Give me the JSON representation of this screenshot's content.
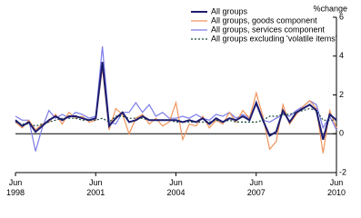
{
  "chart_data": {
    "type": "line",
    "y_label": "%change",
    "categories": [
      "Jun 1998",
      null,
      null,
      null,
      null,
      null,
      null,
      null,
      null,
      null,
      null,
      null,
      "Jun 2001",
      null,
      null,
      null,
      null,
      null,
      null,
      null,
      null,
      null,
      null,
      null,
      "Jun 2004",
      null,
      null,
      null,
      null,
      null,
      null,
      null,
      null,
      null,
      null,
      null,
      "Jun 2007",
      null,
      null,
      null,
      null,
      null,
      null,
      null,
      null,
      null,
      null,
      null,
      "Jun 2010"
    ],
    "ylim": [
      -2,
      6
    ],
    "yticks": [
      -2,
      0,
      2,
      4,
      6
    ],
    "series": [
      {
        "name": "All groups",
        "color": "#1c1c6e",
        "width": 2,
        "dash": null,
        "values": [
          0.7,
          0.4,
          0.6,
          0.1,
          0.4,
          0.7,
          0.9,
          0.7,
          0.9,
          0.9,
          0.8,
          0.7,
          0.8,
          3.7,
          0.4,
          0.8,
          1.1,
          0.6,
          0.7,
          0.9,
          0.7,
          0.7,
          0.7,
          0.7,
          0.7,
          0.6,
          0.7,
          0.6,
          0.8,
          0.5,
          0.8,
          0.6,
          0.8,
          0.7,
          0.9,
          0.7,
          1.6,
          0.7,
          -0.1,
          0.1,
          1.2,
          0.6,
          1.1,
          1.3,
          1.5,
          1.2,
          -0.3,
          1.0,
          0.7
        ]
      },
      {
        "name": "All groups, goods component",
        "color": "#f0955e",
        "width": 1.2,
        "dash": null,
        "values": [
          0.6,
          0.3,
          0.7,
          0.2,
          0.5,
          0.6,
          1.0,
          0.5,
          1.1,
          0.8,
          0.9,
          0.6,
          0.7,
          3.4,
          0.2,
          1.3,
          1.0,
          0.0,
          0.8,
          1.0,
          0.5,
          0.8,
          0.4,
          0.6,
          1.6,
          -0.3,
          0.5,
          0.4,
          0.9,
          0.3,
          0.7,
          0.5,
          1.1,
          0.6,
          1.2,
          0.8,
          2.1,
          0.9,
          -0.8,
          -0.4,
          1.5,
          0.5,
          1.0,
          1.4,
          1.7,
          1.3,
          -1.0,
          1.2,
          0.3
        ]
      },
      {
        "name": "All groups, services component",
        "color": "#7b7be8",
        "width": 1.2,
        "dash": null,
        "values": [
          0.9,
          0.7,
          0.7,
          -0.9,
          0.3,
          1.2,
          0.8,
          1.0,
          0.8,
          1.1,
          1.0,
          0.8,
          0.9,
          4.5,
          0.6,
          0.5,
          1.1,
          1.1,
          1.6,
          1.1,
          1.5,
          0.9,
          1.1,
          0.8,
          0.8,
          0.9,
          0.8,
          1.0,
          0.8,
          0.7,
          1.0,
          0.9,
          1.1,
          0.8,
          1.0,
          0.8,
          1.5,
          0.7,
          0.6,
          0.8,
          1.0,
          0.9,
          1.2,
          1.4,
          1.7,
          1.5,
          0.3,
          0.9,
          0.2
        ]
      },
      {
        "name": "All groups excluding 'volatile items'",
        "color": "#1a4a3a",
        "width": 1.2,
        "dash": "2,2",
        "values": [
          0.6,
          0.5,
          0.5,
          0.4,
          0.5,
          0.6,
          0.7,
          0.8,
          0.8,
          0.8,
          0.7,
          0.7,
          0.7,
          0.8,
          0.6,
          0.9,
          0.9,
          0.8,
          0.8,
          0.8,
          0.7,
          0.7,
          0.7,
          0.7,
          0.6,
          0.6,
          0.6,
          0.6,
          0.6,
          0.6,
          0.7,
          0.6,
          0.7,
          0.6,
          0.6,
          0.6,
          0.6,
          0.7,
          0.9,
          0.9,
          1.0,
          1.0,
          1.1,
          1.2,
          1.3,
          1.2,
          0.7,
          0.7,
          0.7
        ]
      }
    ]
  }
}
